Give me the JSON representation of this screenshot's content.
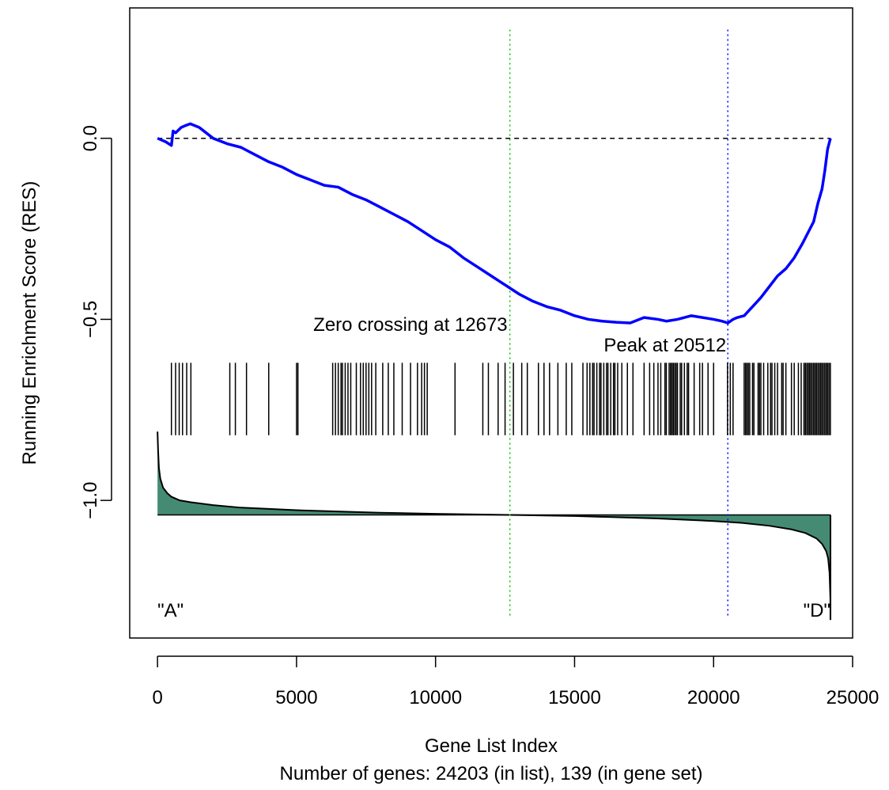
{
  "chart_data": {
    "type": "line",
    "title": "",
    "xlabel": "Gene List Index",
    "xlabel_sub": "Number of genes: 24203 (in list), 139 (in gene set)",
    "ylabel": "Running Enrichment Score (RES)",
    "xlim": [
      -1000,
      25000
    ],
    "ylim": [
      -1.38,
      0.36
    ],
    "x_ticks": [
      0,
      5000,
      10000,
      15000,
      20000,
      25000
    ],
    "x_tick_labels": [
      "0",
      "5000",
      "10000",
      "15000",
      "20000",
      "25000"
    ],
    "y_ticks": [
      0.0,
      -0.5,
      -1.0
    ],
    "y_tick_labels": [
      "0.0",
      "−0.5",
      "−1.0"
    ],
    "grid": false,
    "series": [
      {
        "kind": "running_enrichment_score",
        "color": "#0000ff",
        "x": [
          0,
          300,
          500,
          560,
          650,
          850,
          1000,
          1180,
          1500,
          2000,
          2500,
          3000,
          3500,
          4000,
          4500,
          5000,
          5500,
          6000,
          6500,
          7000,
          7500,
          8000,
          8500,
          9000,
          9500,
          10000,
          10500,
          11000,
          11500,
          12000,
          12500,
          13000,
          13500,
          14000,
          14500,
          15000,
          15500,
          16000,
          16500,
          17000,
          17500,
          18000,
          18300,
          18700,
          19200,
          19600,
          20000,
          20300,
          20512,
          20700,
          20850,
          21100,
          21400,
          21700,
          22000,
          22300,
          22600,
          22900,
          23200,
          23400,
          23600,
          23750,
          23900,
          24000,
          24100,
          24203
        ],
        "y": [
          0.0,
          -0.01,
          -0.02,
          0.02,
          0.015,
          0.03,
          0.035,
          0.04,
          0.03,
          0.0,
          -0.015,
          -0.025,
          -0.045,
          -0.065,
          -0.08,
          -0.1,
          -0.115,
          -0.13,
          -0.135,
          -0.155,
          -0.17,
          -0.19,
          -0.21,
          -0.23,
          -0.255,
          -0.28,
          -0.3,
          -0.33,
          -0.355,
          -0.38,
          -0.405,
          -0.43,
          -0.45,
          -0.465,
          -0.475,
          -0.49,
          -0.5,
          -0.505,
          -0.508,
          -0.51,
          -0.495,
          -0.5,
          -0.505,
          -0.5,
          -0.49,
          -0.495,
          -0.5,
          -0.505,
          -0.51,
          -0.5,
          -0.495,
          -0.49,
          -0.465,
          -0.44,
          -0.41,
          -0.38,
          -0.36,
          -0.33,
          -0.29,
          -0.26,
          -0.23,
          -0.18,
          -0.14,
          -0.09,
          -0.03,
          0.0
        ]
      }
    ],
    "zero_line": {
      "y": 0.0,
      "style": "dashed",
      "color": "#000000"
    },
    "zero_crossing": {
      "x": 12673,
      "label": "Zero crossing at 12673",
      "color": "#00c000"
    },
    "peak": {
      "x": 20512,
      "label": "Peak at 20512",
      "color": "#0000ff"
    },
    "gene_hits": {
      "y_top": -0.62,
      "y_bottom": -0.82,
      "positions": [
        500,
        650,
        780,
        900,
        1050,
        1200,
        2600,
        2800,
        3200,
        4000,
        5000,
        5050,
        6300,
        6400,
        6500,
        6600,
        6650,
        6750,
        6850,
        6950,
        7150,
        7300,
        7400,
        7500,
        7600,
        7700,
        7850,
        8100,
        8300,
        8500,
        8800,
        9100,
        9350,
        9500,
        9600,
        9700,
        10700,
        11700,
        11900,
        12250,
        12500,
        12800,
        13100,
        13300,
        13700,
        13900,
        14100,
        14400,
        14700,
        14900,
        15300,
        15450,
        15550,
        15650,
        15700,
        15800,
        15900,
        15950,
        16050,
        16150,
        16200,
        16300,
        16400,
        16450,
        16550,
        16700,
        16900,
        17100,
        17500,
        17700,
        17850,
        18000,
        18100,
        18250,
        18300,
        18400,
        18450,
        18500,
        18550,
        18600,
        18650,
        18700,
        18800,
        18850,
        18950,
        19050,
        19100,
        19300,
        19500,
        19600,
        19800,
        20000,
        20500,
        20600,
        20700,
        21100,
        21150,
        21200,
        21250,
        21300,
        21400,
        21450,
        21600,
        21650,
        21700,
        21800,
        21950,
        22050,
        22100,
        22200,
        22300,
        22450,
        22500,
        22600,
        22800,
        22900,
        23050,
        23150,
        23250,
        23300,
        23350,
        23400,
        23450,
        23500,
        23550,
        23600,
        23650,
        23700,
        23750,
        23800,
        23850,
        23900,
        23950,
        24000,
        24050,
        24100,
        24150,
        24200
      ]
    },
    "ranked_metric": {
      "fill_color": "#458b74",
      "baseline": -1.04,
      "x": [
        0,
        20,
        50,
        100,
        200,
        350,
        500,
        800,
        1200,
        2000,
        3000,
        5000,
        8000,
        10000,
        12673,
        15000,
        18000,
        20000,
        21000,
        22000,
        22800,
        23300,
        23700,
        23900,
        24050,
        24120,
        24170,
        24200,
        24203
      ],
      "y": [
        -0.81,
        -0.86,
        -0.91,
        -0.94,
        -0.965,
        -0.98,
        -0.99,
        -1.0,
        -1.005,
        -1.013,
        -1.02,
        -1.027,
        -1.034,
        -1.037,
        -1.04,
        -1.043,
        -1.05,
        -1.057,
        -1.062,
        -1.07,
        -1.08,
        -1.09,
        -1.105,
        -1.12,
        -1.14,
        -1.16,
        -1.2,
        -1.27,
        -1.33
      ]
    },
    "phenotype_labels": {
      "left": "\"A\"",
      "right": "\"D\""
    }
  }
}
